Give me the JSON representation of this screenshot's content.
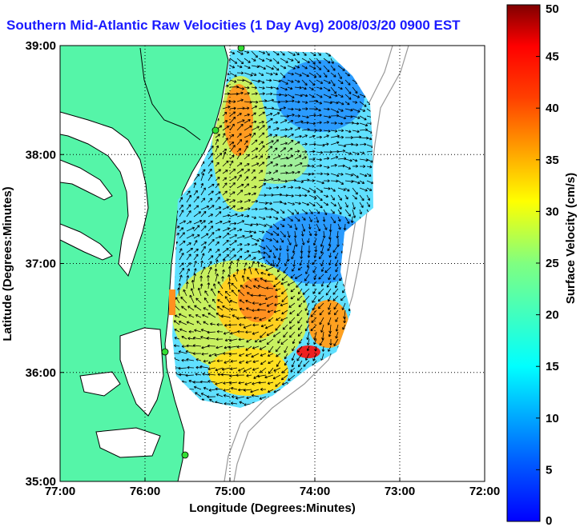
{
  "title": "Southern Mid-Atlantic Raw Velocities (1 Day Avg) 2008/03/20 0900 EST",
  "map": {
    "xlabel": "Longitude (Degrees:Minutes)",
    "ylabel": "Latitude (Degrees:Minutes)",
    "xlim": [
      -77,
      -72
    ],
    "ylim": [
      35,
      39
    ],
    "x_ticks": [
      {
        "value": -77,
        "label": "77:00"
      },
      {
        "value": -76,
        "label": "76:00"
      },
      {
        "value": -75,
        "label": "75:00"
      },
      {
        "value": -74,
        "label": "74:00"
      },
      {
        "value": -73,
        "label": "73:00"
      },
      {
        "value": -72,
        "label": "72:00"
      }
    ],
    "y_ticks": [
      {
        "value": 35,
        "label": "35:00"
      },
      {
        "value": 36,
        "label": "36:00"
      },
      {
        "value": 37,
        "label": "37:00"
      },
      {
        "value": 38,
        "label": "38:00"
      },
      {
        "value": 39,
        "label": "39:00"
      }
    ],
    "grid": "dotted",
    "land_color": "#55f5a8",
    "coastline_color": "#000000",
    "bathymetry_color": "#999999"
  },
  "colorbar": {
    "label": "Surface Velocity (cm/s)",
    "range": [
      0,
      50
    ],
    "ticks": [
      {
        "value": 0,
        "label": "0"
      },
      {
        "value": 5,
        "label": "5"
      },
      {
        "value": 10,
        "label": "10"
      },
      {
        "value": 15,
        "label": "15"
      },
      {
        "value": 20,
        "label": "20"
      },
      {
        "value": 25,
        "label": "25"
      },
      {
        "value": 30,
        "label": "30"
      },
      {
        "value": 35,
        "label": "35"
      },
      {
        "value": 40,
        "label": "40"
      },
      {
        "value": 45,
        "label": "45"
      },
      {
        "value": 50,
        "label": "50"
      }
    ],
    "colormap": "jet"
  }
}
